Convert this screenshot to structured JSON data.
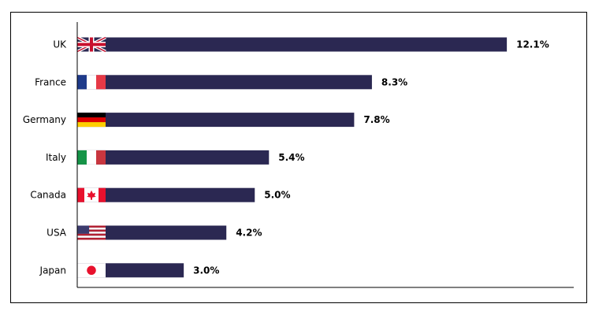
{
  "chart_data": {
    "type": "bar",
    "orientation": "horizontal",
    "categories": [
      "UK",
      "France",
      "Germany",
      "Italy",
      "Canada",
      "USA",
      "Japan"
    ],
    "values": [
      12.1,
      8.3,
      7.8,
      5.4,
      5.0,
      4.2,
      3.0
    ],
    "value_labels": [
      "12.1%",
      "8.3%",
      "7.8%",
      "5.4%",
      "5.0%",
      "4.2%",
      "3.0%"
    ],
    "flag_icons": [
      "uk-flag-icon",
      "france-flag-icon",
      "germany-flag-icon",
      "italy-flag-icon",
      "canada-flag-icon",
      "usa-flag-icon",
      "japan-flag-icon"
    ],
    "xlim": [
      0,
      14
    ],
    "grid": false,
    "legend": "none",
    "bar_color": "#2B2852"
  }
}
